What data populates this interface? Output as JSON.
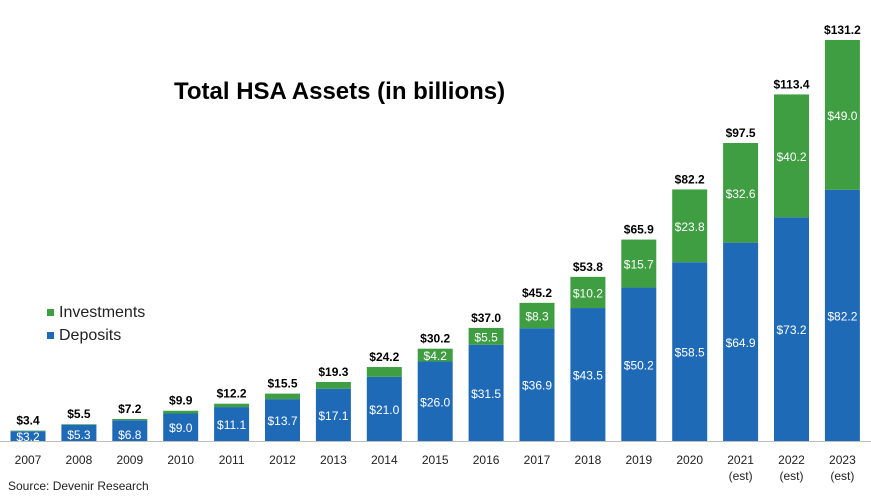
{
  "chart_data": {
    "type": "bar",
    "stacked": true,
    "title": "Total HSA Assets (in billions)",
    "categories": [
      "2007",
      "2008",
      "2009",
      "2010",
      "2011",
      "2012",
      "2013",
      "2014",
      "2015",
      "2016",
      "2017",
      "2018",
      "2019",
      "2020",
      "2021\n(est)",
      "2022\n(est)",
      "2023\n(est)"
    ],
    "series": [
      {
        "name": "Deposits",
        "color": "#1f6ab7",
        "values": [
          3.2,
          5.3,
          6.8,
          9.0,
          11.1,
          13.7,
          17.1,
          21.0,
          26.0,
          31.5,
          36.9,
          43.5,
          50.2,
          58.5,
          64.9,
          73.2,
          82.2
        ],
        "labels": [
          "$3.2",
          "$5.3",
          "$6.8",
          "$9.0",
          "$11.1",
          "$13.7",
          "$17.1",
          "$21.0",
          "$26.0",
          "$31.5",
          "$36.9",
          "$43.5",
          "$50.2",
          "$58.5",
          "$64.9",
          "$73.2",
          "$82.2"
        ]
      },
      {
        "name": "Investments",
        "color": "#3f9e42",
        "values": [
          0.2,
          0.2,
          0.4,
          0.9,
          1.1,
          1.8,
          2.2,
          3.2,
          4.2,
          5.5,
          8.3,
          10.2,
          15.7,
          23.8,
          32.6,
          40.2,
          49.0
        ],
        "labels": [
          "",
          "",
          "",
          "",
          "",
          "",
          "",
          "",
          "$4.2",
          "$5.5",
          "$8.3",
          "$10.2",
          "$15.7",
          "$23.8",
          "$32.6",
          "$40.2",
          "$49.0"
        ]
      }
    ],
    "totals": [
      "$3.4",
      "$5.5",
      "$7.2",
      "$9.9",
      "$12.2",
      "$15.5",
      "$19.3",
      "$24.2",
      "$30.2",
      "$37.0",
      "$45.2",
      "$53.8",
      "$65.9",
      "$82.2",
      "$97.5",
      "$113.4",
      "$131.2"
    ],
    "ylim": [
      0,
      131.2
    ],
    "grid": false,
    "legend_position": "left-middle"
  },
  "legend": {
    "investments": "Investments",
    "deposits": "Deposits"
  },
  "source": "Source: Devenir Research"
}
